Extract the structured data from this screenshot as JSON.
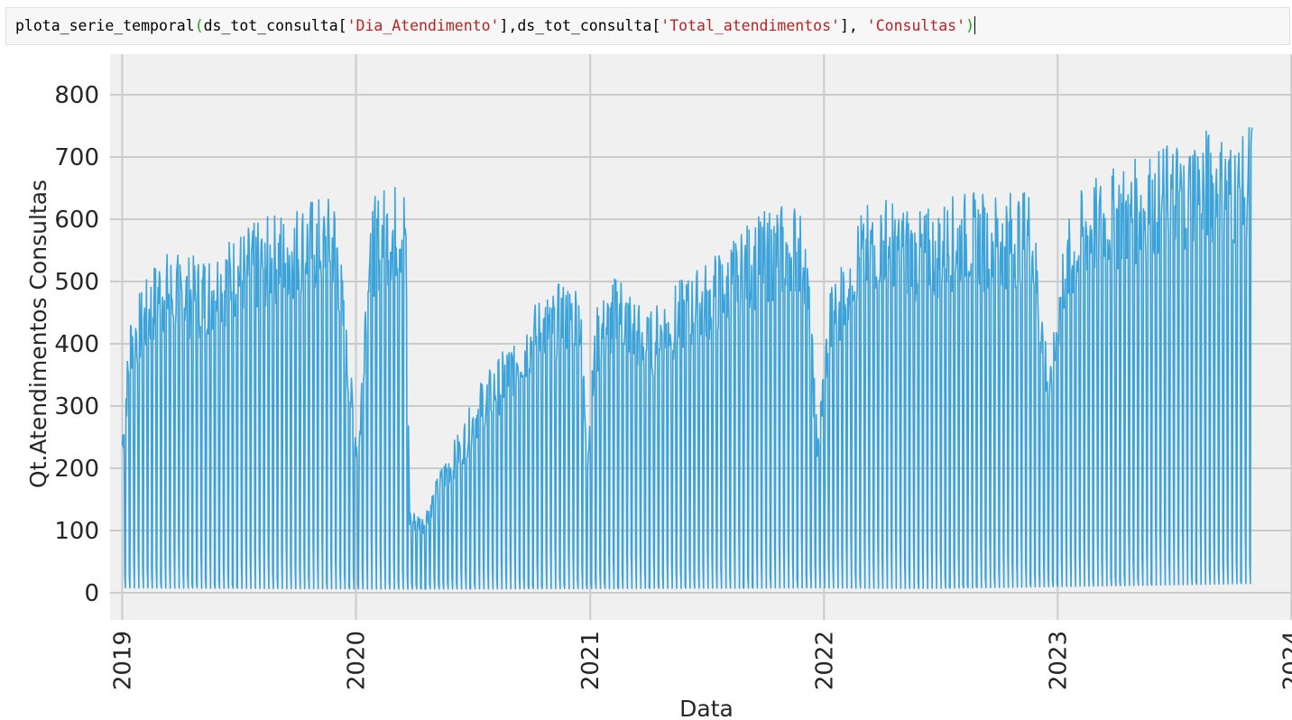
{
  "code_cell": {
    "parts": [
      {
        "text": "plota_serie_temporal",
        "kind": "plain"
      },
      {
        "text": "(",
        "kind": "paren"
      },
      {
        "text": "ds_tot_consulta[",
        "kind": "plain"
      },
      {
        "text": "'Dia_Atendimento'",
        "kind": "str"
      },
      {
        "text": "],ds_tot_consulta[",
        "kind": "plain"
      },
      {
        "text": "'Total_atendimentos'",
        "kind": "str"
      },
      {
        "text": "], ",
        "kind": "plain"
      },
      {
        "text": "'Consultas'",
        "kind": "str"
      },
      {
        "text": ")",
        "kind": "paren"
      }
    ]
  },
  "colors": {
    "line": "#3ba3d9",
    "plot_bg": "#f0f0f0",
    "grid": "#cbcbcb",
    "string": "#ba2121",
    "paren": "#19a319"
  },
  "chart_data": {
    "type": "line",
    "title": "",
    "xlabel": "Data",
    "ylabel": "Qt.Atendimentos Consultas",
    "ylim": [
      0,
      820
    ],
    "yticks": [
      0,
      100,
      200,
      300,
      400,
      500,
      600,
      700,
      800
    ],
    "xticks": [
      "2019",
      "2020",
      "2021",
      "2022",
      "2023",
      "2024"
    ],
    "xlim": [
      "2018-12-13",
      "2024-01-02"
    ],
    "grid": true,
    "series": [
      {
        "style": "daily series oscillating between a weekday peak envelope and a near-zero weekend floor",
        "start": "2019-01-01",
        "end": "2023-11-01",
        "envelope": [
          [
            "2019-01-01",
            260
          ],
          [
            "2019-01-15",
            450
          ],
          [
            "2019-02-01",
            470
          ],
          [
            "2019-03-01",
            530
          ],
          [
            "2019-05-01",
            520
          ],
          [
            "2019-07-01",
            560
          ],
          [
            "2019-09-01",
            590
          ],
          [
            "2019-10-15",
            610
          ],
          [
            "2019-12-01",
            615
          ],
          [
            "2019-12-20",
            380
          ],
          [
            "2020-01-05",
            230
          ],
          [
            "2020-01-20",
            600
          ],
          [
            "2020-02-15",
            630
          ],
          [
            "2020-03-18",
            640
          ],
          [
            "2020-03-25",
            130
          ],
          [
            "2020-04-15",
            120
          ],
          [
            "2020-05-15",
            200
          ],
          [
            "2020-06-15",
            260
          ],
          [
            "2020-07-15",
            330
          ],
          [
            "2020-08-15",
            370
          ],
          [
            "2020-09-15",
            420
          ],
          [
            "2020-10-15",
            460
          ],
          [
            "2020-11-15",
            480
          ],
          [
            "2020-12-15",
            490
          ],
          [
            "2020-12-28",
            240
          ],
          [
            "2021-01-10",
            440
          ],
          [
            "2021-02-15",
            500
          ],
          [
            "2021-04-01",
            430
          ],
          [
            "2021-05-01",
            470
          ],
          [
            "2021-06-15",
            500
          ],
          [
            "2021-08-01",
            540
          ],
          [
            "2021-09-01",
            570
          ],
          [
            "2021-10-15",
            600
          ],
          [
            "2021-12-01",
            610
          ],
          [
            "2021-12-22",
            260
          ],
          [
            "2022-01-10",
            470
          ],
          [
            "2022-02-15",
            580
          ],
          [
            "2022-04-01",
            620
          ],
          [
            "2022-06-01",
            590
          ],
          [
            "2022-08-01",
            620
          ],
          [
            "2022-10-01",
            620
          ],
          [
            "2022-11-20",
            630
          ],
          [
            "2022-12-20",
            340
          ],
          [
            "2023-01-10",
            560
          ],
          [
            "2023-02-15",
            640
          ],
          [
            "2023-05-01",
            670
          ],
          [
            "2023-07-01",
            700
          ],
          [
            "2023-08-15",
            720
          ],
          [
            "2023-10-15",
            700
          ],
          [
            "2023-11-01",
            740
          ]
        ],
        "floor": [
          [
            "2019-01-01",
            8
          ],
          [
            "2020-03-25",
            6
          ],
          [
            "2021-12-31",
            8
          ],
          [
            "2022-06-01",
            7
          ],
          [
            "2023-01-01",
            10
          ],
          [
            "2023-11-01",
            15
          ]
        ]
      }
    ]
  }
}
